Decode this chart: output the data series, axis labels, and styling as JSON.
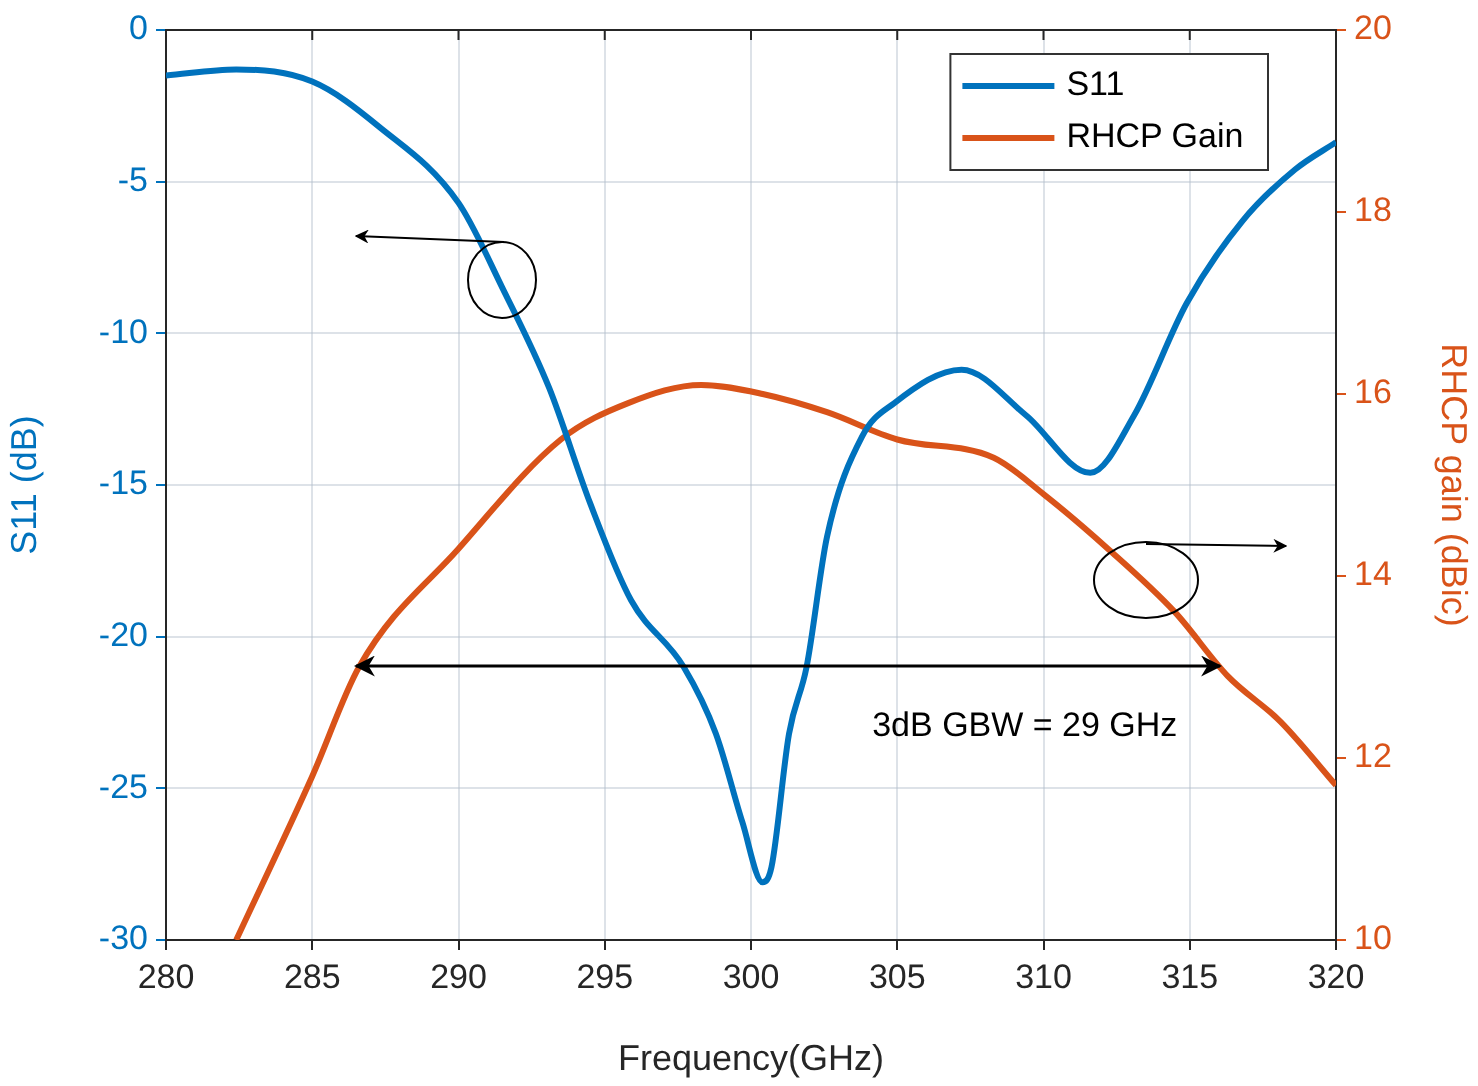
{
  "chart_data": {
    "type": "line",
    "xlabel": "Frequency(GHz)",
    "ylabel": "S11 (dB)",
    "y2label": "RHCP gain (dBic)",
    "xlim": [
      280,
      320
    ],
    "xticks": [
      280,
      285,
      290,
      295,
      300,
      305,
      310,
      315,
      320
    ],
    "ylim": [
      -30,
      0
    ],
    "yticks": [
      -30,
      -25,
      -20,
      -15,
      -10,
      -5,
      0
    ],
    "y2lim": [
      10,
      20
    ],
    "y2ticks": [
      10,
      12,
      14,
      16,
      18,
      20
    ],
    "grid": true,
    "legend": "top right",
    "marker": "none",
    "line_style": "solid",
    "series": [
      {
        "name": "S11",
        "color": "#0072bd",
        "x": [
          280,
          282.4,
          285,
          287.3,
          290,
          291.5,
          293.1,
          294.5,
          295.9,
          297.7,
          298.8,
          299.7,
          300.4,
          300.7,
          301.3,
          301.9,
          302.6,
          303.8,
          304.9,
          307.2,
          309.4,
          311.6,
          313.1,
          314.9,
          316.8,
          318.6,
          320
        ],
        "values": [
          -1.5,
          -1.3,
          -1.7,
          -3.2,
          -5.7,
          -8.5,
          -11.8,
          -15.6,
          -18.8,
          -21,
          -23.2,
          -26.1,
          -28.1,
          -27.6,
          -23.2,
          -21,
          -16.7,
          -13.4,
          -12.3,
          -11.2,
          -12.7,
          -14.6,
          -12.7,
          -9,
          -6.3,
          -4.6,
          -3.7
        ]
      },
      {
        "name": "RHCP Gain",
        "color": "#d95319",
        "axis": "y2",
        "x": [
          282.4,
          285,
          286.6,
          290,
          293.5,
          295.8,
          298.3,
          300.4,
          302.6,
          305,
          308.3,
          310,
          312.2,
          314.5,
          316.3,
          318.1,
          320
        ],
        "values": [
          10,
          11.8,
          13,
          14.3,
          15.5,
          15.9,
          16.1,
          16,
          15.8,
          15.5,
          15.3,
          14.9,
          14.3,
          13.6,
          12.9,
          12.4,
          11.7
        ]
      }
    ],
    "annotations": [
      "3dB GBW = 29 GHz"
    ]
  }
}
